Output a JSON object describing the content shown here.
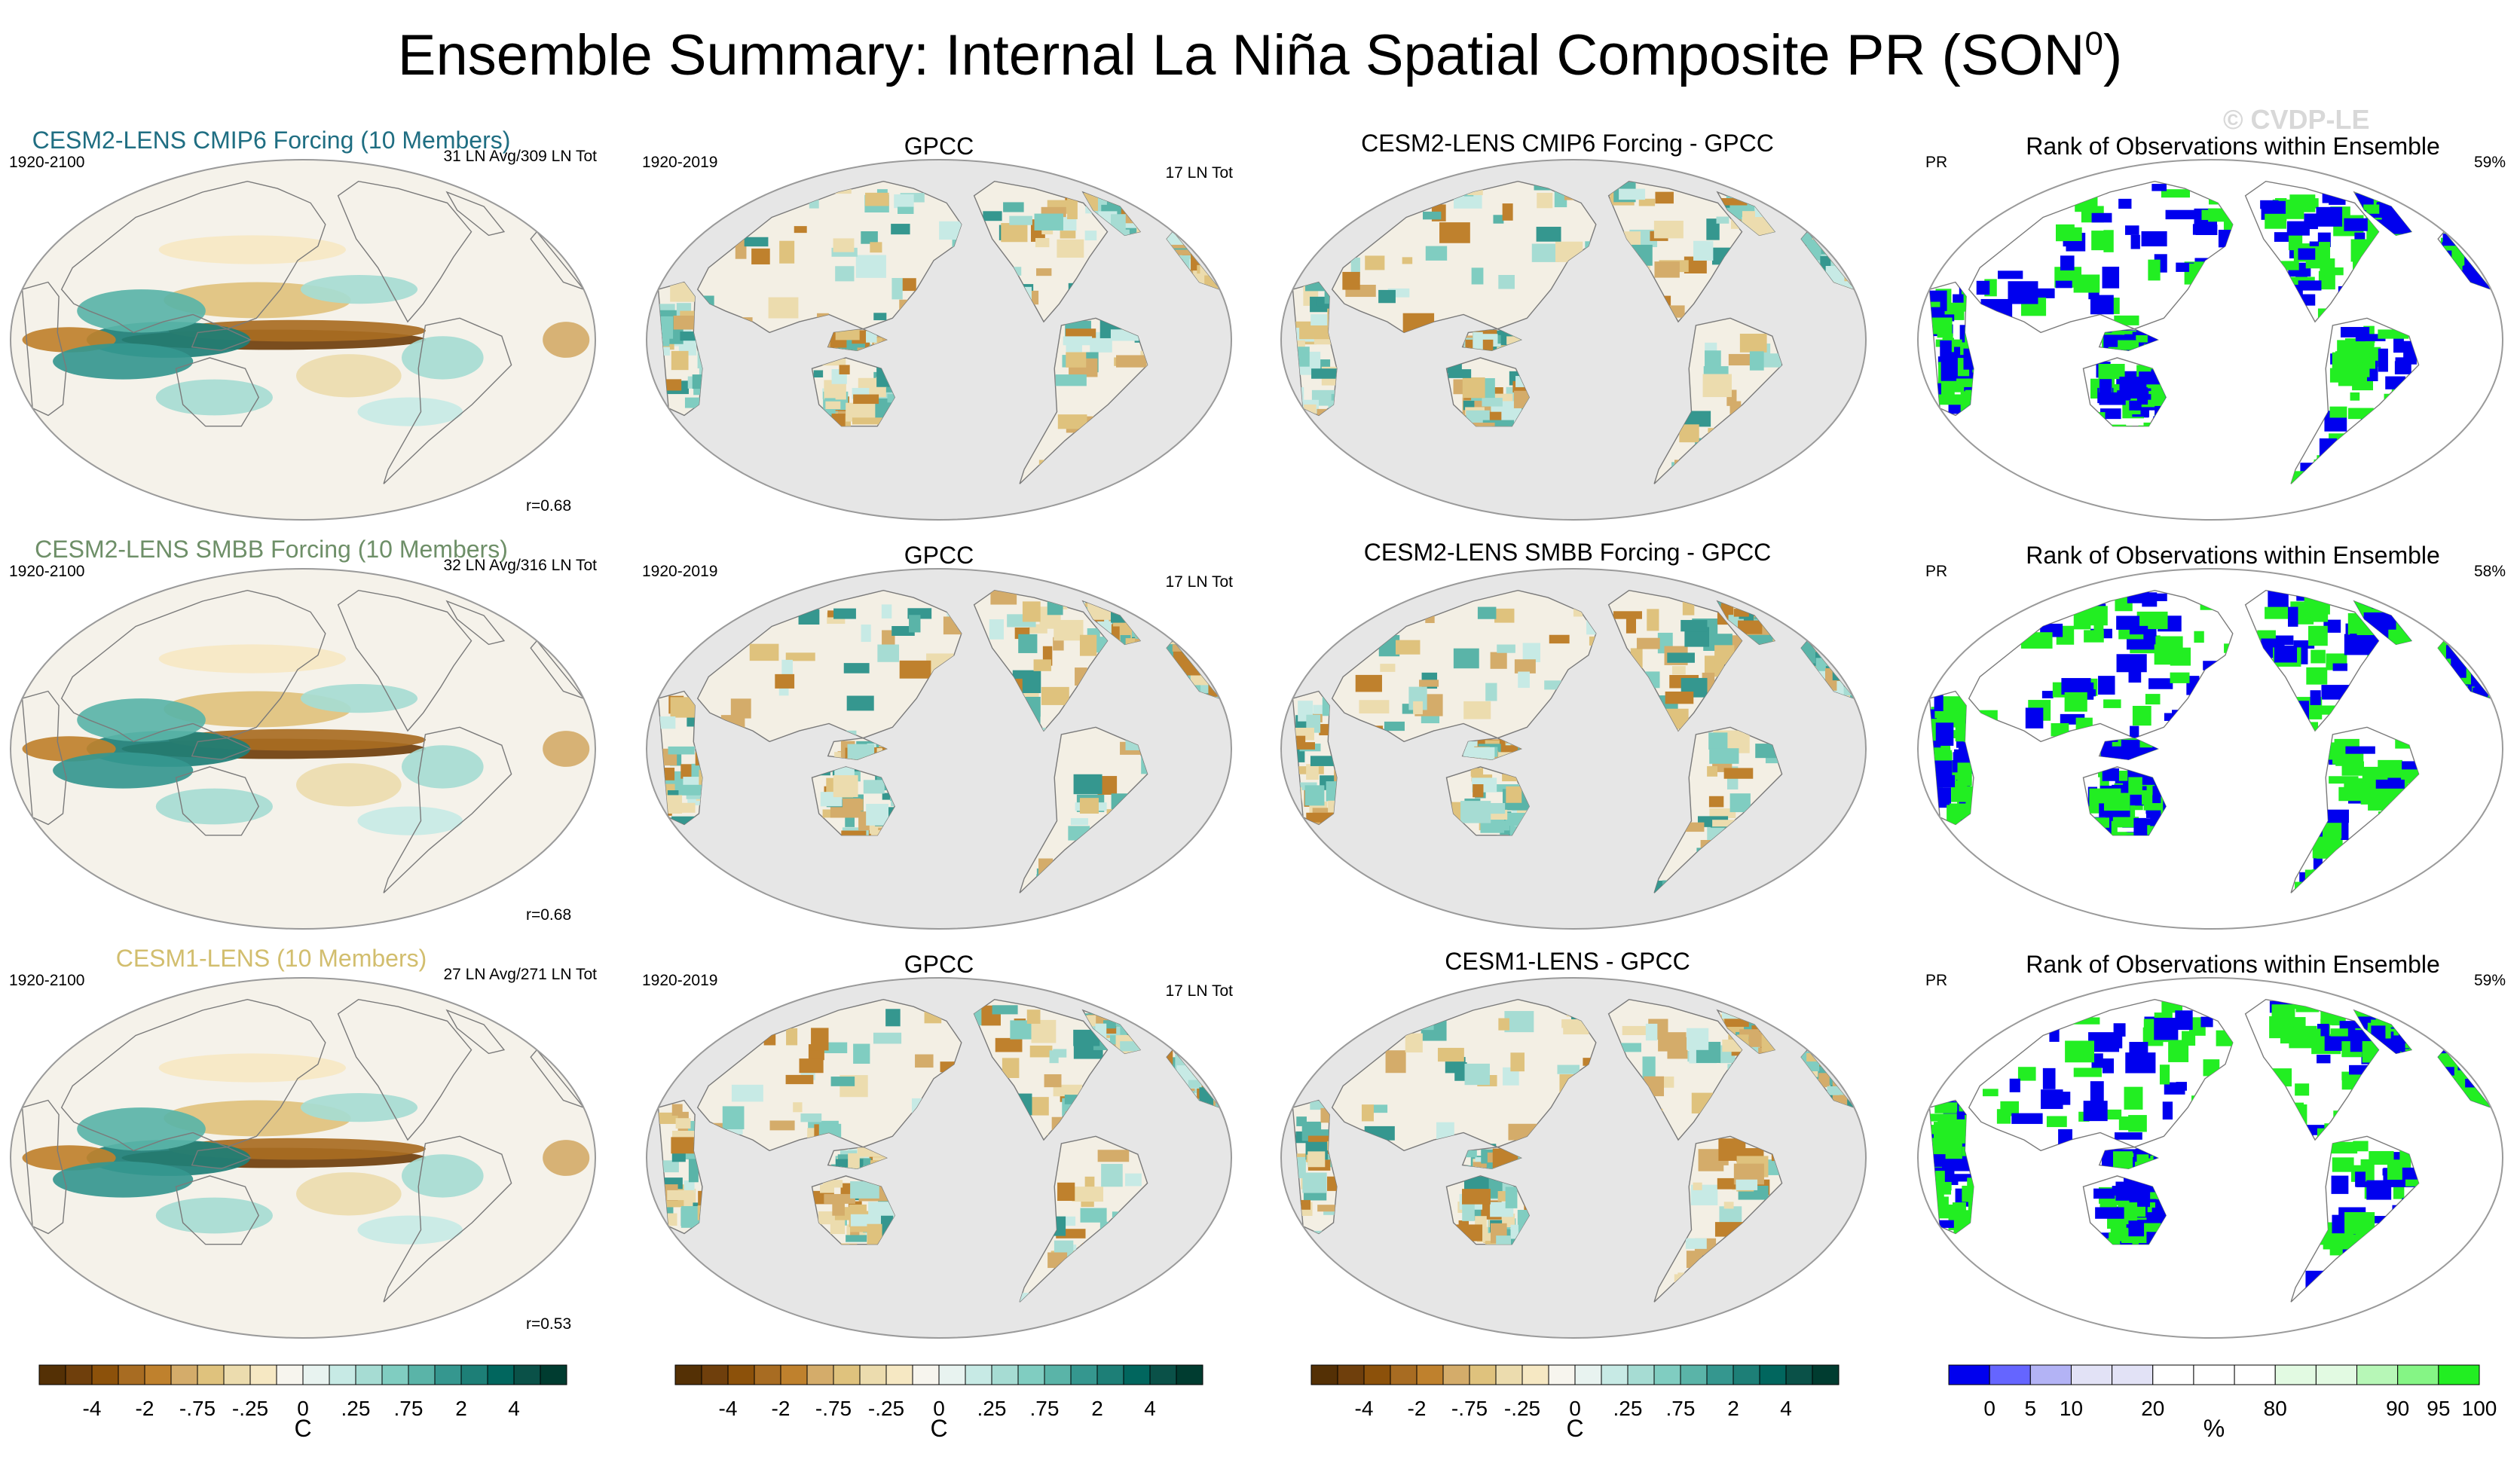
{
  "title": {
    "main": "Ensemble Summary: Internal La Niña Spatial Composite PR (SON",
    "superscript": "0",
    "close": ")"
  },
  "watermark": "© CVDP-LE",
  "colors": {
    "ensemble_titles": [
      "#1f6e82",
      "#6e8f68",
      "#d2be6e"
    ],
    "sea": "#f5f2ea",
    "land_missing": "#e6e6e6",
    "coast": "#7a7a7a",
    "rank_blue": "#0000ee",
    "rank_green": "#22ee22"
  },
  "rows": [
    {
      "ensemble": {
        "title": "CESM2-LENS CMIP6 Forcing (10 Members)",
        "years": "1920-2100",
        "count": "31 LN Avg/309 LN Tot",
        "r": "r=0.68"
      },
      "obs": {
        "title": "GPCC",
        "years": "1920-2019",
        "count": "17 LN Tot"
      },
      "diff": {
        "title": "CESM2-LENS CMIP6 Forcing - GPCC"
      },
      "rank": {
        "title": "Rank of Observations within Ensemble",
        "var": "PR",
        "pct": "59%"
      }
    },
    {
      "ensemble": {
        "title": "CESM2-LENS SMBB Forcing (10 Members)",
        "years": "1920-2100",
        "count": "32 LN Avg/316 LN Tot",
        "r": "r=0.68"
      },
      "obs": {
        "title": "GPCC",
        "years": "1920-2019",
        "count": "17 LN Tot"
      },
      "diff": {
        "title": "CESM2-LENS SMBB Forcing - GPCC"
      },
      "rank": {
        "title": "Rank of Observations within Ensemble",
        "var": "PR",
        "pct": "58%"
      }
    },
    {
      "ensemble": {
        "title": "CESM1-LENS (10 Members)",
        "years": "1920-2100",
        "count": "27 LN Avg/271 LN Tot",
        "r": "r=0.53"
      },
      "obs": {
        "title": "GPCC",
        "years": "1920-2019",
        "count": "17 LN Tot"
      },
      "diff": {
        "title": "CESM1-LENS - GPCC"
      },
      "rank": {
        "title": "Rank of Observations within Ensemble",
        "var": "PR",
        "pct": "59%"
      }
    }
  ],
  "colorbars": {
    "diverging": {
      "colors": [
        "#543005",
        "#6f3f0c",
        "#8c510a",
        "#a86c22",
        "#bf812d",
        "#d4ac6a",
        "#dfc27d",
        "#ecdcae",
        "#f6e8c3",
        "#f7f5ee",
        "#e8f3f0",
        "#c7eae5",
        "#a6dcd3",
        "#80cdc1",
        "#5ab4a8",
        "#35978f",
        "#1d7f77",
        "#01665e",
        "#0a5148",
        "#003c30"
      ],
      "tick_labels": [
        "-4",
        "-2",
        "-.75",
        "-.25",
        "0",
        ".25",
        ".75",
        "2",
        "4"
      ],
      "unit": "C"
    },
    "rank": {
      "colors": [
        "#0000ee",
        "#6565ff",
        "#b3b3f5",
        "#e2e2f6",
        "#e2e2f6",
        "#ffffff",
        "#ffffff",
        "#ffffff",
        "#e2fae2",
        "#e2fae2",
        "#b7f7b7",
        "#85f585",
        "#22ee22"
      ],
      "tick_labels": [
        "0",
        "5",
        "10",
        "20",
        "80",
        "90",
        "95",
        "100"
      ],
      "unit": "%"
    }
  }
}
